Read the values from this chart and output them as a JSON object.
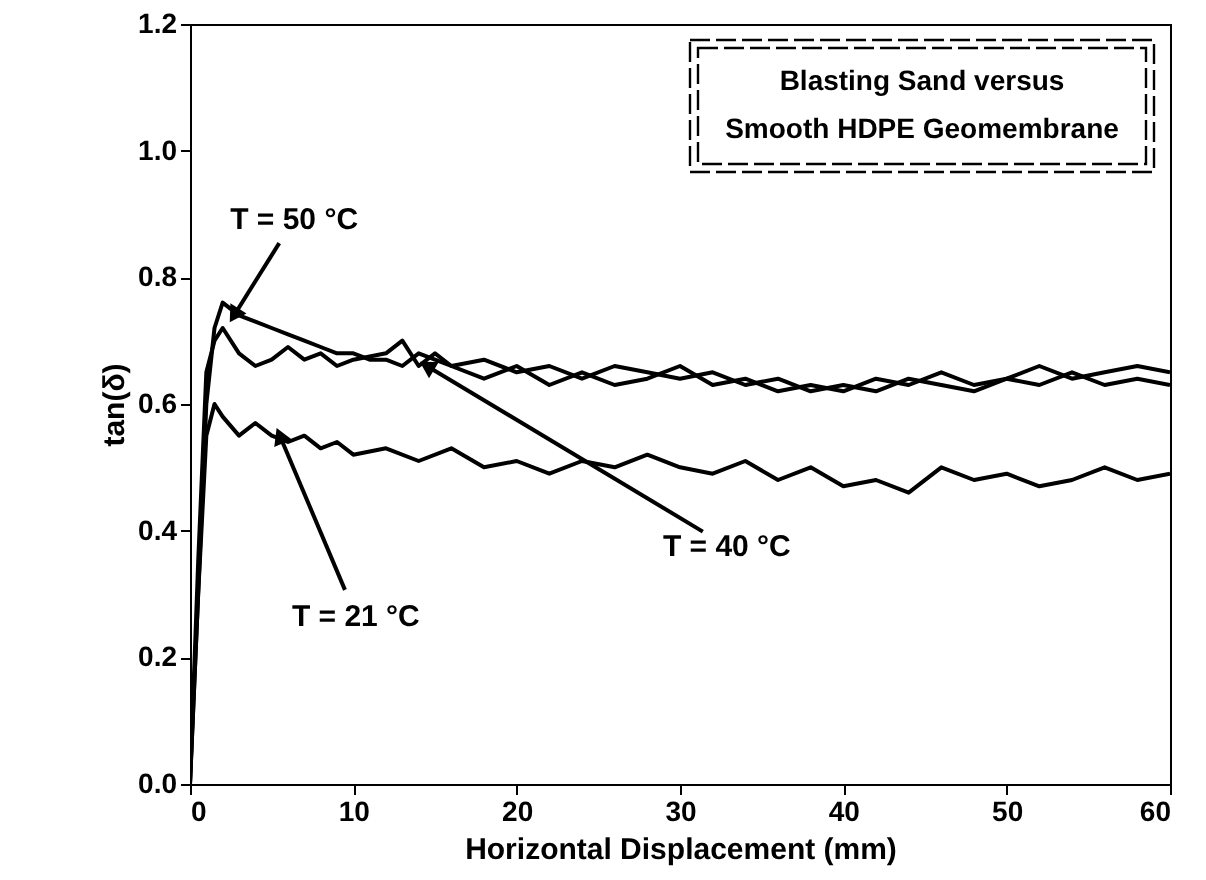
{
  "chart_data": {
    "type": "line",
    "title": "Blasting Sand versus\nSmooth HDPE Geomembrane",
    "xlabel": "Horizontal Displacement (mm)",
    "ylabel": "tan(δ)",
    "xlim": [
      0,
      60
    ],
    "xticks": [
      0,
      10,
      20,
      30,
      40,
      50,
      60
    ],
    "ylim": [
      0,
      1.2
    ],
    "yticks": [
      {
        "value": 0,
        "label": "0.0"
      },
      0.2,
      0.4,
      0.6,
      0.8,
      {
        "value": 1,
        "label": "1.0"
      },
      1.2
    ],
    "grid": false,
    "annotations": [
      {
        "text": "T = 50 °C",
        "x": 2.7,
        "y": 0.74
      },
      {
        "text": "T = 40 °C",
        "x": 14.5,
        "y": 0.66
      },
      {
        "text": "T = 21 °C",
        "x": 5.5,
        "y": 0.55
      }
    ],
    "series": [
      {
        "color": "#000000",
        "x": [
          0,
          0.5,
          1,
          1.5,
          2,
          3,
          4,
          5,
          6,
          7,
          8,
          9,
          10,
          11,
          12,
          13,
          14,
          15,
          16,
          18,
          20,
          22,
          24,
          26,
          28,
          30,
          32,
          34,
          36,
          38,
          40,
          42,
          44,
          46,
          48,
          50,
          52,
          54,
          56,
          58,
          60
        ],
        "values": [
          0,
          0.3,
          0.6,
          0.72,
          0.76,
          0.74,
          0.73,
          0.72,
          0.71,
          0.7,
          0.69,
          0.68,
          0.68,
          0.67,
          0.67,
          0.66,
          0.68,
          0.67,
          0.66,
          0.67,
          0.65,
          0.66,
          0.64,
          0.66,
          0.65,
          0.64,
          0.65,
          0.63,
          0.64,
          0.62,
          0.63,
          0.62,
          0.64,
          0.63,
          0.62,
          0.64,
          0.63,
          0.65,
          0.63,
          0.64,
          0.63
        ]
      },
      {
        "color": "#000000",
        "x": [
          0,
          0.5,
          1,
          1.5,
          2,
          3,
          4,
          5,
          6,
          7,
          8,
          9,
          10,
          12,
          13,
          14,
          15,
          16,
          18,
          20,
          22,
          24,
          26,
          28,
          30,
          32,
          34,
          36,
          38,
          40,
          42,
          44,
          46,
          48,
          50,
          52,
          54,
          56,
          58,
          60
        ],
        "values": [
          0,
          0.35,
          0.65,
          0.7,
          0.72,
          0.68,
          0.66,
          0.67,
          0.69,
          0.67,
          0.68,
          0.66,
          0.67,
          0.68,
          0.7,
          0.66,
          0.68,
          0.66,
          0.64,
          0.66,
          0.63,
          0.65,
          0.63,
          0.64,
          0.66,
          0.63,
          0.64,
          0.62,
          0.63,
          0.62,
          0.64,
          0.63,
          0.65,
          0.63,
          0.64,
          0.66,
          0.64,
          0.65,
          0.66,
          0.65
        ]
      },
      {
        "color": "#000000",
        "x": [
          0,
          0.5,
          1,
          1.5,
          2,
          3,
          4,
          5,
          6,
          7,
          8,
          9,
          10,
          12,
          14,
          16,
          18,
          20,
          22,
          24,
          26,
          28,
          30,
          32,
          34,
          36,
          38,
          40,
          42,
          44,
          46,
          48,
          50,
          52,
          54,
          56,
          58,
          60
        ],
        "values": [
          0,
          0.3,
          0.55,
          0.6,
          0.58,
          0.55,
          0.57,
          0.55,
          0.54,
          0.55,
          0.53,
          0.54,
          0.52,
          0.53,
          0.51,
          0.53,
          0.5,
          0.51,
          0.49,
          0.51,
          0.5,
          0.52,
          0.5,
          0.49,
          0.51,
          0.48,
          0.5,
          0.47,
          0.48,
          0.46,
          0.5,
          0.48,
          0.49,
          0.47,
          0.48,
          0.5,
          0.48,
          0.49
        ]
      }
    ]
  }
}
